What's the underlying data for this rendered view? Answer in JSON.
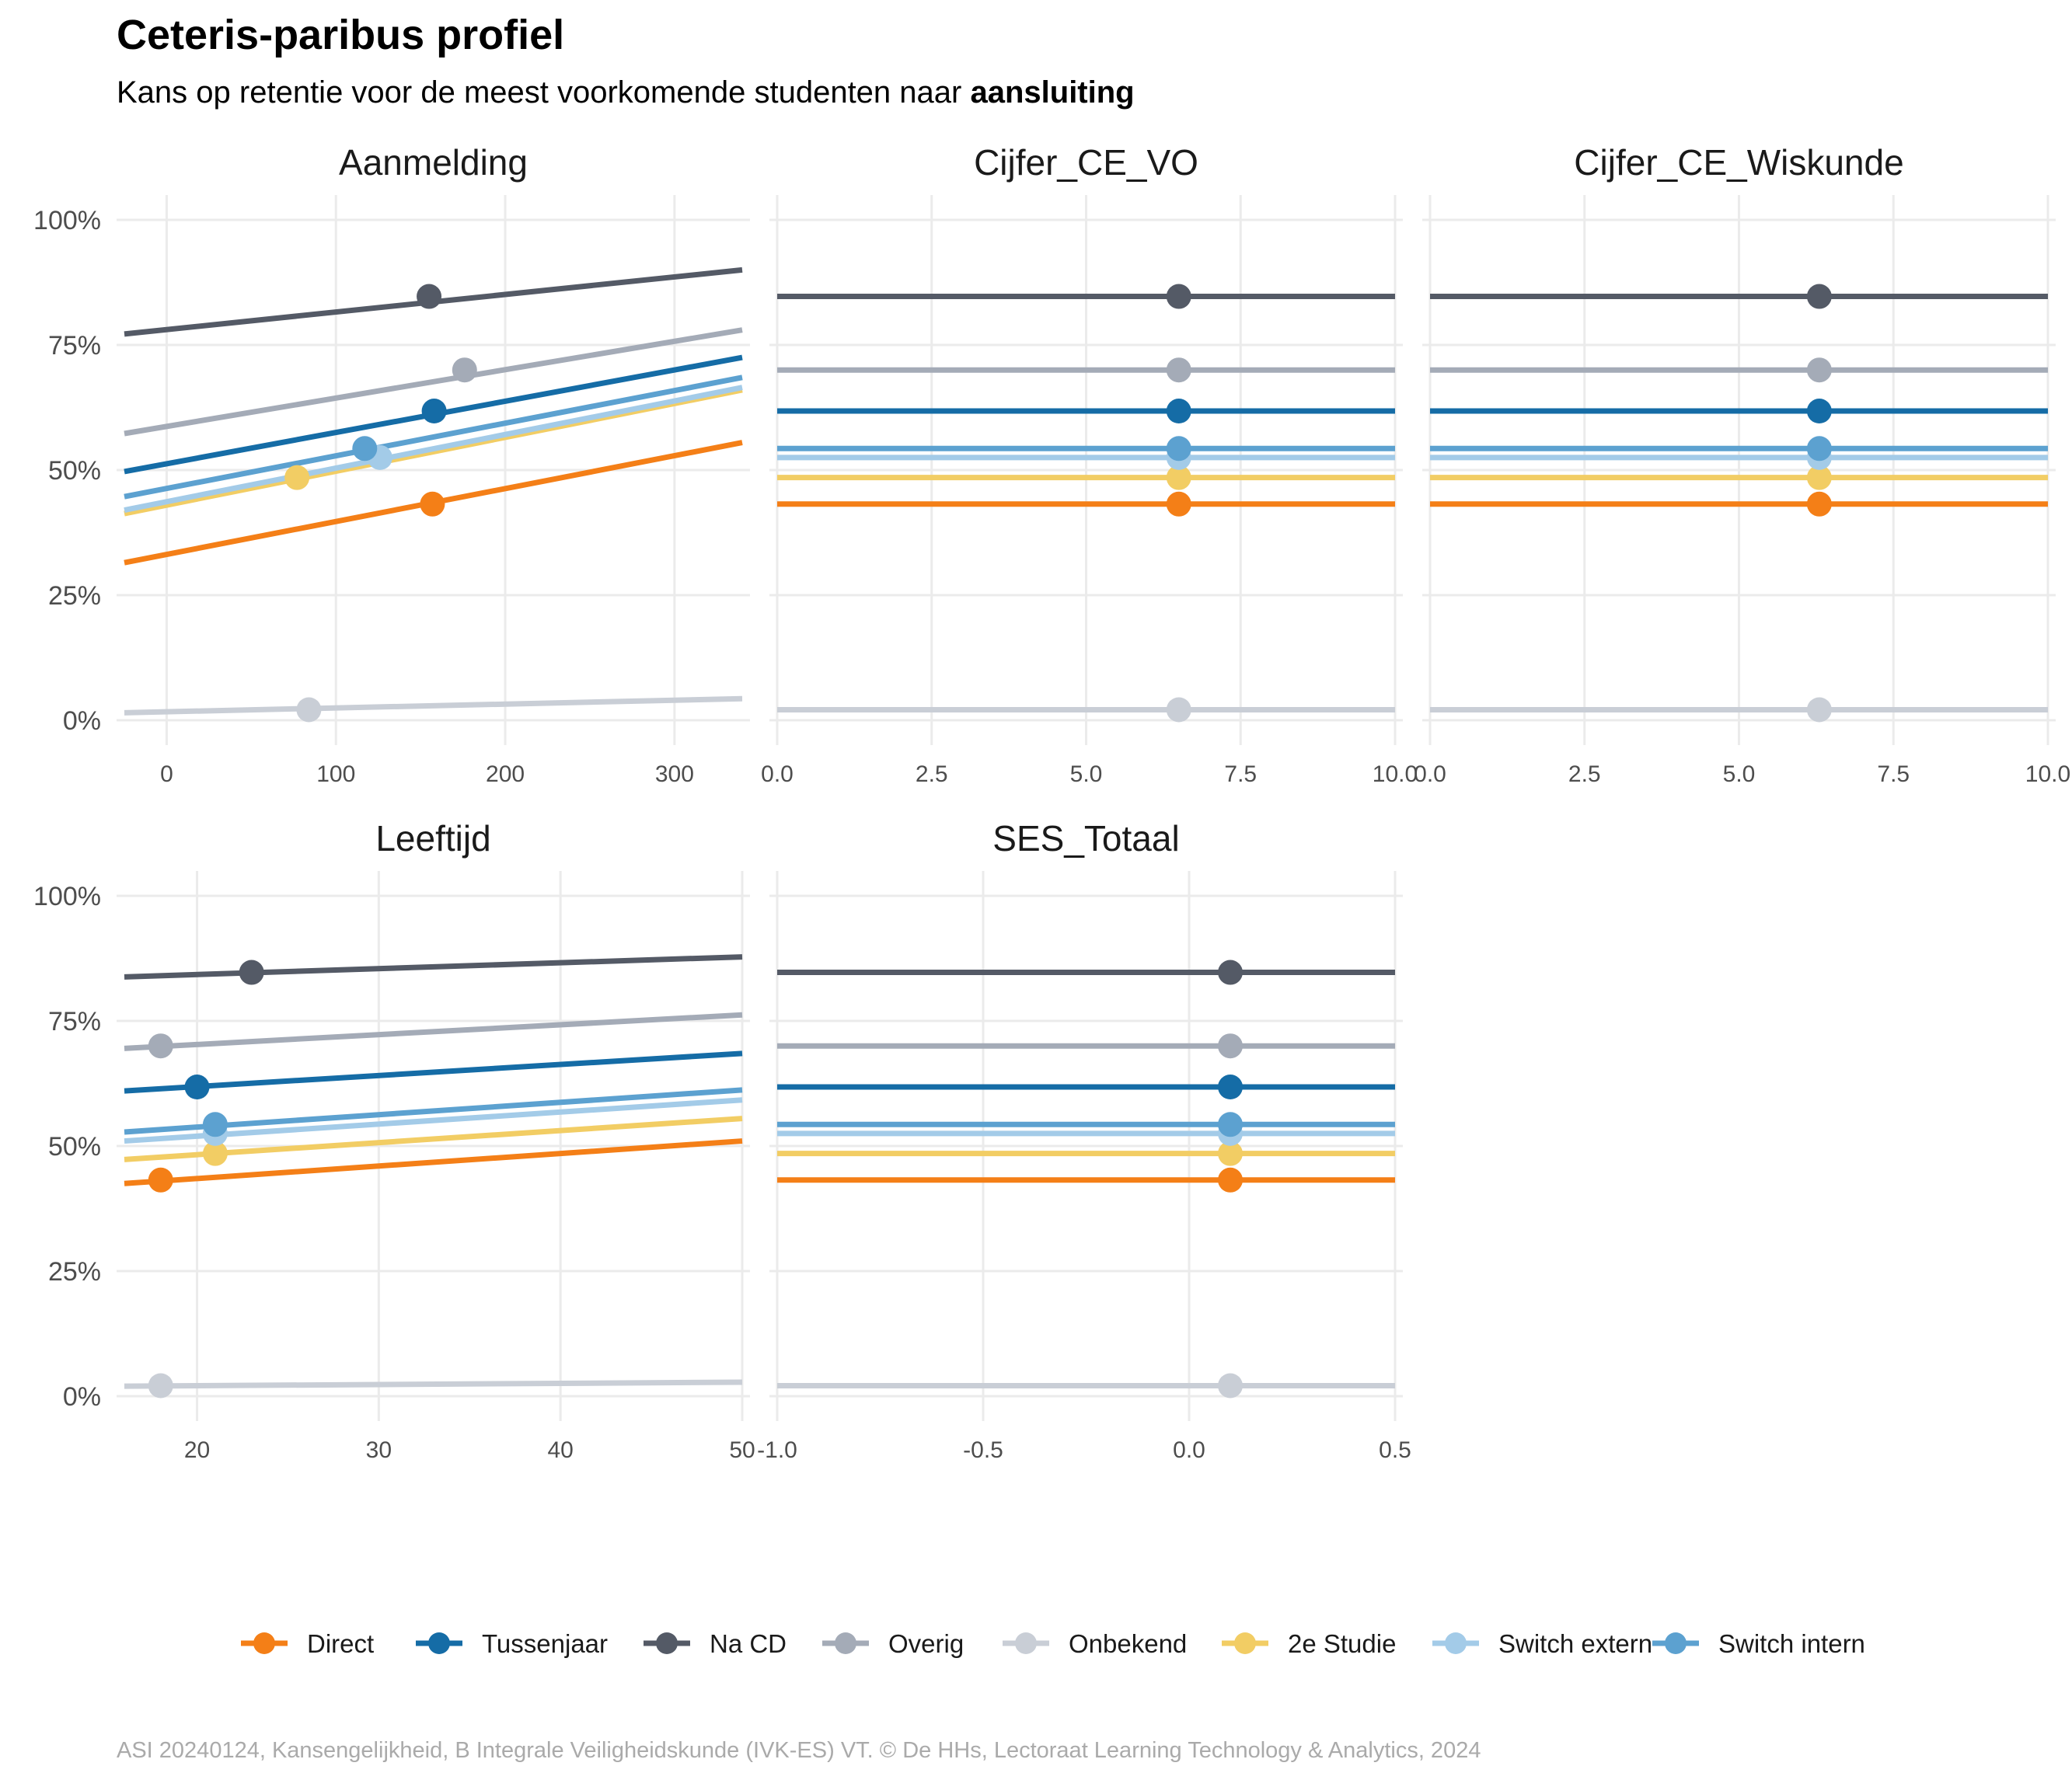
{
  "title": "Ceteris-paribus profiel",
  "subtitle_prefix": "Kans op retentie voor de meest voorkomende studenten naar ",
  "subtitle_bold": "aansluiting",
  "caption": "ASI 20240124, Kansengelijkheid, B Integrale Veiligheidskunde (IVK-ES) VT. © De HHs, Lectoraat Learning Technology & Analytics, 2024",
  "legend": {
    "position": "bottom",
    "items": [
      {
        "label": "Direct",
        "color": "#F47F17"
      },
      {
        "label": "Tussenjaar",
        "color": "#156CA6"
      },
      {
        "label": "Na CD",
        "color": "#545A66"
      },
      {
        "label": "Overig",
        "color": "#A4ABB7"
      },
      {
        "label": "Onbekend",
        "color": "#C9CED6"
      },
      {
        "label": "2e Studie",
        "color": "#F2CD64"
      },
      {
        "label": "Switch extern",
        "color": "#A3CBE8"
      },
      {
        "label": "Switch intern",
        "color": "#5CA1D0"
      }
    ]
  },
  "y_ticks": [
    "0%",
    "25%",
    "50%",
    "75%",
    "100%"
  ],
  "chart_data": [
    {
      "type": "line",
      "facet": "Aanmelding",
      "xlim": [
        -25,
        340
      ],
      "ylim": [
        0,
        1
      ],
      "x_ticks": [
        0,
        100,
        200,
        300
      ],
      "x_tick_labels": [
        "0",
        "100",
        "200",
        "300"
      ],
      "grid": true,
      "series": [
        {
          "name": "Direct",
          "x": [
            -25,
            340
          ],
          "y": [
            0.315,
            0.555
          ],
          "point": [
            157,
            0.432
          ]
        },
        {
          "name": "Tussenjaar",
          "x": [
            -25,
            340
          ],
          "y": [
            0.497,
            0.725
          ],
          "point": [
            158,
            0.618
          ]
        },
        {
          "name": "Na CD",
          "x": [
            -25,
            340
          ],
          "y": [
            0.772,
            0.9
          ],
          "point": [
            155,
            0.847
          ]
        },
        {
          "name": "Overig",
          "x": [
            -25,
            340
          ],
          "y": [
            0.573,
            0.78
          ],
          "point": [
            176,
            0.7
          ]
        },
        {
          "name": "Onbekend",
          "x": [
            -25,
            340
          ],
          "y": [
            0.015,
            0.043
          ],
          "point": [
            84,
            0.021
          ]
        },
        {
          "name": "2e Studie",
          "x": [
            -25,
            340
          ],
          "y": [
            0.413,
            0.66
          ],
          "point": [
            77,
            0.485
          ]
        },
        {
          "name": "Switch extern",
          "x": [
            -25,
            340
          ],
          "y": [
            0.42,
            0.665
          ],
          "point": [
            126,
            0.525
          ]
        },
        {
          "name": "Switch intern",
          "x": [
            -25,
            340
          ],
          "y": [
            0.447,
            0.685
          ],
          "point": [
            117,
            0.543
          ]
        }
      ]
    },
    {
      "type": "line",
      "facet": "Cijfer_CE_VO",
      "xlim": [
        0,
        10
      ],
      "ylim": [
        0,
        1
      ],
      "x_ticks": [
        0,
        2.5,
        5,
        7.5,
        10
      ],
      "x_tick_labels": [
        "0.0",
        "2.5",
        "5.0",
        "7.5",
        "10.0"
      ],
      "grid": true,
      "series": [
        {
          "name": "Direct",
          "x": [
            0,
            10
          ],
          "y": [
            0.432,
            0.432
          ],
          "point": [
            6.5,
            0.432
          ]
        },
        {
          "name": "Tussenjaar",
          "x": [
            0,
            10
          ],
          "y": [
            0.618,
            0.618
          ],
          "point": [
            6.5,
            0.618
          ]
        },
        {
          "name": "Na CD",
          "x": [
            0,
            10
          ],
          "y": [
            0.847,
            0.847
          ],
          "point": [
            6.5,
            0.847
          ]
        },
        {
          "name": "Overig",
          "x": [
            0,
            10
          ],
          "y": [
            0.7,
            0.7
          ],
          "point": [
            6.5,
            0.7
          ]
        },
        {
          "name": "Onbekend",
          "x": [
            0,
            10
          ],
          "y": [
            0.021,
            0.021
          ],
          "point": [
            6.5,
            0.021
          ]
        },
        {
          "name": "2e Studie",
          "x": [
            0,
            10
          ],
          "y": [
            0.485,
            0.485
          ],
          "point": [
            6.5,
            0.485
          ]
        },
        {
          "name": "Switch extern",
          "x": [
            0,
            10
          ],
          "y": [
            0.525,
            0.525
          ],
          "point": [
            6.5,
            0.525
          ]
        },
        {
          "name": "Switch intern",
          "x": [
            0,
            10
          ],
          "y": [
            0.543,
            0.543
          ],
          "point": [
            6.5,
            0.543
          ]
        }
      ]
    },
    {
      "type": "line",
      "facet": "Cijfer_CE_Wiskunde",
      "xlim": [
        0,
        10
      ],
      "ylim": [
        0,
        1
      ],
      "x_ticks": [
        0,
        2.5,
        5,
        7.5,
        10
      ],
      "x_tick_labels": [
        "0.0",
        "2.5",
        "5.0",
        "7.5",
        "10.0"
      ],
      "grid": true,
      "series": [
        {
          "name": "Direct",
          "x": [
            0,
            10
          ],
          "y": [
            0.432,
            0.432
          ],
          "point": [
            6.3,
            0.432
          ]
        },
        {
          "name": "Tussenjaar",
          "x": [
            0,
            10
          ],
          "y": [
            0.618,
            0.618
          ],
          "point": [
            6.3,
            0.618
          ]
        },
        {
          "name": "Na CD",
          "x": [
            0,
            10
          ],
          "y": [
            0.847,
            0.847
          ],
          "point": [
            6.3,
            0.847
          ]
        },
        {
          "name": "Overig",
          "x": [
            0,
            10
          ],
          "y": [
            0.7,
            0.7
          ],
          "point": [
            6.3,
            0.7
          ]
        },
        {
          "name": "Onbekend",
          "x": [
            0,
            10
          ],
          "y": [
            0.021,
            0.021
          ],
          "point": [
            6.3,
            0.021
          ]
        },
        {
          "name": "2e Studie",
          "x": [
            0,
            10
          ],
          "y": [
            0.485,
            0.485
          ],
          "point": [
            6.3,
            0.485
          ]
        },
        {
          "name": "Switch extern",
          "x": [
            0,
            10
          ],
          "y": [
            0.525,
            0.525
          ],
          "point": [
            6.3,
            0.525
          ]
        },
        {
          "name": "Switch intern",
          "x": [
            0,
            10
          ],
          "y": [
            0.543,
            0.543
          ],
          "point": [
            6.3,
            0.543
          ]
        }
      ]
    },
    {
      "type": "line",
      "facet": "Leeftijd",
      "xlim": [
        16,
        50
      ],
      "ylim": [
        0,
        1
      ],
      "x_ticks": [
        20,
        30,
        40,
        50
      ],
      "x_tick_labels": [
        "20",
        "30",
        "40",
        "50"
      ],
      "grid": true,
      "series": [
        {
          "name": "Direct",
          "x": [
            16,
            50
          ],
          "y": [
            0.425,
            0.51
          ],
          "point": [
            18,
            0.432
          ]
        },
        {
          "name": "Tussenjaar",
          "x": [
            16,
            50
          ],
          "y": [
            0.61,
            0.685
          ],
          "point": [
            20,
            0.618
          ]
        },
        {
          "name": "Na CD",
          "x": [
            16,
            50
          ],
          "y": [
            0.838,
            0.878
          ],
          "point": [
            23,
            0.847
          ]
        },
        {
          "name": "Overig",
          "x": [
            16,
            50
          ],
          "y": [
            0.695,
            0.762
          ],
          "point": [
            18,
            0.7
          ]
        },
        {
          "name": "Onbekend",
          "x": [
            16,
            50
          ],
          "y": [
            0.02,
            0.028
          ],
          "point": [
            18,
            0.021
          ]
        },
        {
          "name": "2e Studie",
          "x": [
            16,
            50
          ],
          "y": [
            0.473,
            0.555
          ],
          "point": [
            21,
            0.485
          ]
        },
        {
          "name": "Switch extern",
          "x": [
            16,
            50
          ],
          "y": [
            0.51,
            0.592
          ],
          "point": [
            21,
            0.525
          ]
        },
        {
          "name": "Switch intern",
          "x": [
            16,
            50
          ],
          "y": [
            0.528,
            0.612
          ],
          "point": [
            21,
            0.543
          ]
        }
      ]
    },
    {
      "type": "line",
      "facet": "SES_Totaal",
      "xlim": [
        -1,
        0.5
      ],
      "ylim": [
        0,
        1
      ],
      "x_ticks": [
        -1,
        -0.5,
        0,
        0.5
      ],
      "x_tick_labels": [
        "-1.0",
        "-0.5",
        "0.0",
        "0.5"
      ],
      "grid": true,
      "series": [
        {
          "name": "Direct",
          "x": [
            -1,
            0.5
          ],
          "y": [
            0.432,
            0.432
          ],
          "point": [
            0.1,
            0.432
          ]
        },
        {
          "name": "Tussenjaar",
          "x": [
            -1,
            0.5
          ],
          "y": [
            0.618,
            0.618
          ],
          "point": [
            0.1,
            0.618
          ]
        },
        {
          "name": "Na CD",
          "x": [
            -1,
            0.5
          ],
          "y": [
            0.847,
            0.847
          ],
          "point": [
            0.1,
            0.847
          ]
        },
        {
          "name": "Overig",
          "x": [
            -1,
            0.5
          ],
          "y": [
            0.7,
            0.7
          ],
          "point": [
            0.1,
            0.7
          ]
        },
        {
          "name": "Onbekend",
          "x": [
            -1,
            0.5
          ],
          "y": [
            0.021,
            0.021
          ],
          "point": [
            0.1,
            0.021
          ]
        },
        {
          "name": "2e Studie",
          "x": [
            -1,
            0.5
          ],
          "y": [
            0.485,
            0.485
          ],
          "point": [
            0.1,
            0.485
          ]
        },
        {
          "name": "Switch extern",
          "x": [
            -1,
            0.5
          ],
          "y": [
            0.525,
            0.525
          ],
          "point": [
            0.1,
            0.525
          ]
        },
        {
          "name": "Switch intern",
          "x": [
            -1,
            0.5
          ],
          "y": [
            0.543,
            0.543
          ],
          "point": [
            0.1,
            0.543
          ]
        }
      ]
    }
  ]
}
